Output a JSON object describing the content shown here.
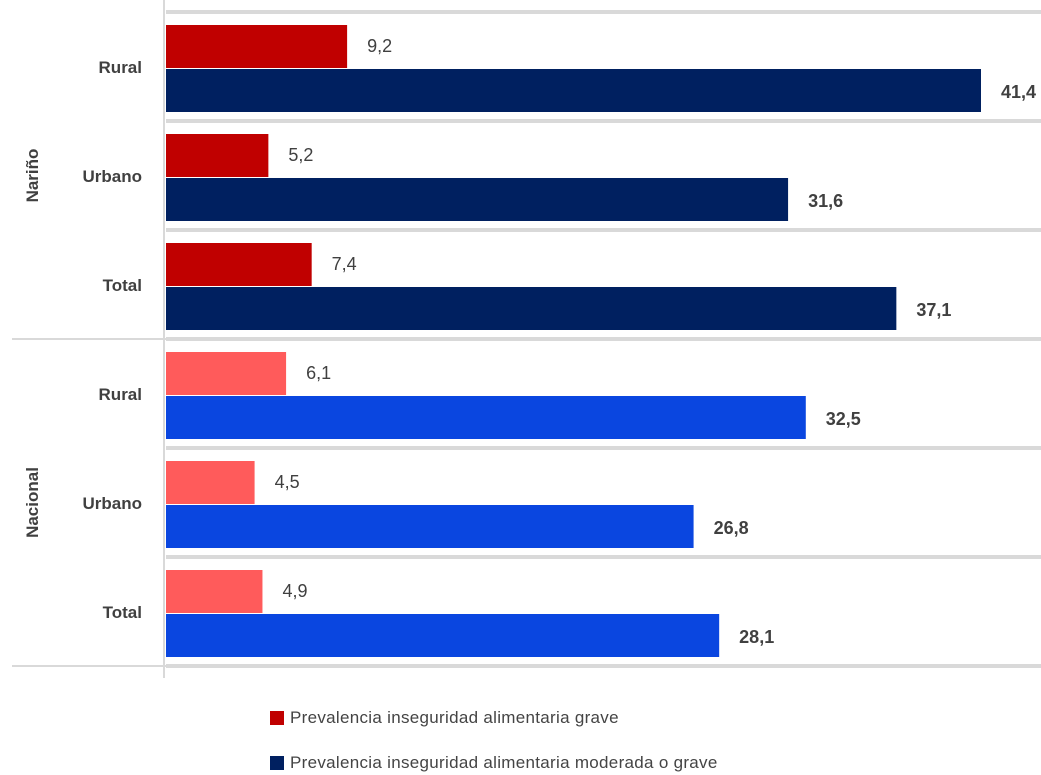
{
  "chart_data": {
    "type": "bar",
    "orientation": "horizontal",
    "groups": [
      {
        "name": "Nariño",
        "categories": [
          "Rural",
          "Urbano",
          "Total"
        ],
        "grave": [
          9.2,
          5.2,
          7.4
        ],
        "moderada_grave": [
          41.4,
          31.6,
          37.1
        ]
      },
      {
        "name": "Nacional",
        "categories": [
          "Rural",
          "Urbano",
          "Total"
        ],
        "grave": [
          6.1,
          4.5,
          4.9
        ],
        "moderada_grave": [
          32.5,
          26.8,
          28.1
        ]
      }
    ],
    "series": [
      {
        "name": "Prevalencia inseguridad alimentaria grave",
        "key": "grave"
      },
      {
        "name": "Prevalencia inseguridad alimentaria moderada o grave",
        "key": "moderada_grave"
      }
    ],
    "xlim": [
      0,
      41.4
    ],
    "legend_position": "bottom",
    "grid": true
  },
  "colors": {
    "narino_grave": "#c00000",
    "narino_moderada": "#002060",
    "nacional_grave": "#ff5b5b",
    "nacional_moderada": "#0a46e0",
    "grid": "#d9d9d9",
    "text": "#404040"
  }
}
